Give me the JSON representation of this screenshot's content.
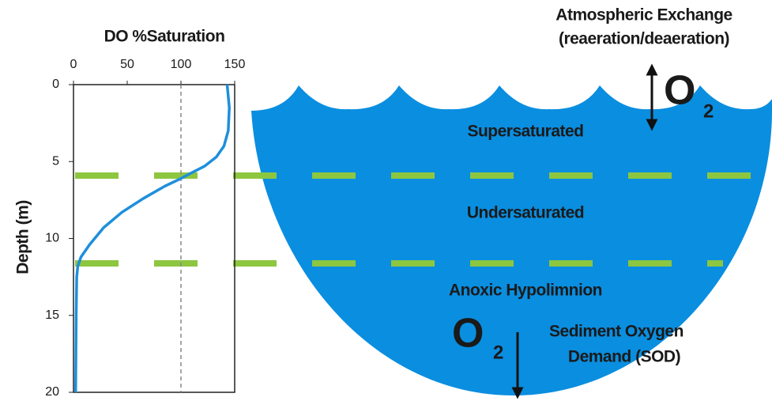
{
  "chart_data": {
    "type": "line",
    "xlabel": "DO  %Saturation",
    "ylabel": "Depth (m)",
    "x": [
      143,
      145,
      144,
      140,
      133,
      122,
      108,
      100,
      85,
      65,
      45,
      28,
      15,
      7,
      4,
      3,
      2.5,
      2
    ],
    "series": [
      {
        "color": "#1e8fdc",
        "values": [
          0,
          1.5,
          3,
          4,
          4.7,
          5.3,
          5.8,
          6.1,
          6.6,
          7.4,
          8.3,
          9.3,
          10.4,
          11.2,
          11.8,
          12.5,
          15,
          20
        ]
      }
    ],
    "xlim": [
      0,
      150
    ],
    "ylim": [
      0,
      20
    ],
    "y_inverted": true,
    "xticks": [
      0,
      50,
      100,
      150
    ],
    "yticks": [
      0,
      5,
      10,
      15,
      20
    ],
    "reference_x": 100
  },
  "diagram": {
    "atmosphere": {
      "line1": "Atmospheric Exchange",
      "line2": "(reaeration/deaeration)",
      "symbol": "O",
      "subscript": "2"
    },
    "layers": [
      "Supersaturated",
      "Undersaturated",
      "Anoxic Hypolimnion"
    ],
    "sediment": {
      "symbol": "O",
      "subscript": "2",
      "line1": "Sediment Oxygen",
      "line2": "Demand (SOD)"
    }
  }
}
